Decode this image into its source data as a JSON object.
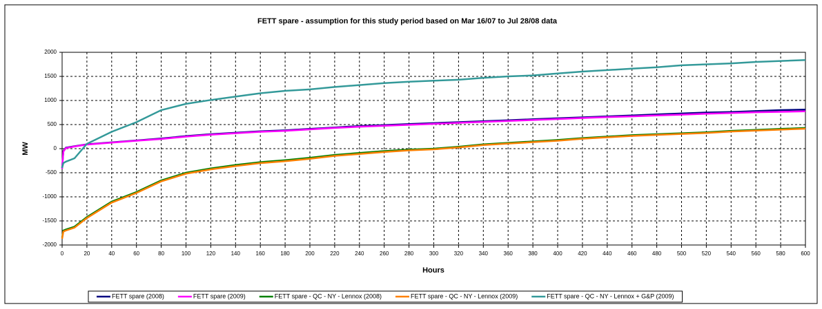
{
  "chart_data": {
    "type": "line",
    "title": "FETT spare - assumption for this study period based on Mar 16/07 to Jul 28/08 data",
    "x_label": "Hours",
    "y_label": "MW",
    "x": [
      0,
      1,
      3,
      10,
      20,
      40,
      60,
      80,
      100,
      120,
      140,
      160,
      180,
      200,
      220,
      240,
      260,
      280,
      300,
      320,
      340,
      360,
      380,
      400,
      420,
      440,
      460,
      480,
      500,
      520,
      540,
      560,
      580,
      600
    ],
    "series": [
      {
        "name": "FETT spare (2008)",
        "color": "#000080",
        "values": [
          -400,
          -50,
          20,
          50,
          90,
          130,
          170,
          210,
          260,
          300,
          330,
          360,
          380,
          410,
          440,
          470,
          490,
          510,
          530,
          550,
          570,
          590,
          610,
          630,
          650,
          670,
          690,
          710,
          730,
          750,
          760,
          780,
          800,
          810
        ]
      },
      {
        "name": "FETT spare (2009)",
        "color": "#ff00ff",
        "values": [
          -420,
          -60,
          10,
          45,
          85,
          125,
          165,
          200,
          250,
          290,
          320,
          350,
          370,
          400,
          430,
          455,
          475,
          495,
          515,
          535,
          555,
          575,
          595,
          615,
          635,
          655,
          670,
          690,
          705,
          725,
          740,
          755,
          765,
          775
        ]
      },
      {
        "name": "FETT spare - QC - NY - Lennox (2008)",
        "color": "#008000",
        "values": [
          -1850,
          -1700,
          -1680,
          -1620,
          -1420,
          -1100,
          -900,
          -660,
          -500,
          -410,
          -340,
          -280,
          -240,
          -190,
          -130,
          -90,
          -50,
          -20,
          0,
          40,
          90,
          120,
          150,
          180,
          220,
          250,
          280,
          300,
          320,
          340,
          370,
          390,
          410,
          430
        ]
      },
      {
        "name": "FETT spare - QC - NY - Lennox (2009)",
        "color": "#ff8000",
        "values": [
          -1870,
          -1720,
          -1700,
          -1640,
          -1440,
          -1120,
          -920,
          -680,
          -520,
          -430,
          -360,
          -300,
          -260,
          -210,
          -150,
          -110,
          -70,
          -35,
          -15,
          25,
          75,
          105,
          135,
          165,
          205,
          235,
          265,
          285,
          305,
          325,
          355,
          375,
          395,
          415
        ]
      },
      {
        "name": "FETT spare - QC - NY - Lennox + G&P (2009)",
        "color": "#339999",
        "values": [
          -400,
          -300,
          -270,
          -200,
          100,
          350,
          550,
          800,
          930,
          1010,
          1080,
          1150,
          1200,
          1230,
          1280,
          1320,
          1360,
          1390,
          1410,
          1430,
          1470,
          1500,
          1520,
          1560,
          1600,
          1630,
          1660,
          1690,
          1730,
          1750,
          1770,
          1800,
          1820,
          1840
        ]
      }
    ],
    "xlim": [
      0,
      600
    ],
    "xticks": [
      0,
      20,
      40,
      60,
      80,
      100,
      120,
      140,
      160,
      180,
      200,
      220,
      240,
      260,
      280,
      300,
      320,
      340,
      360,
      380,
      400,
      420,
      440,
      460,
      480,
      500,
      520,
      540,
      560,
      580,
      600
    ],
    "ylim": [
      -2000,
      2000
    ],
    "yticks": [
      -2000,
      -1500,
      -1000,
      -500,
      0,
      500,
      1000,
      1500,
      2000
    ],
    "grid": true
  }
}
